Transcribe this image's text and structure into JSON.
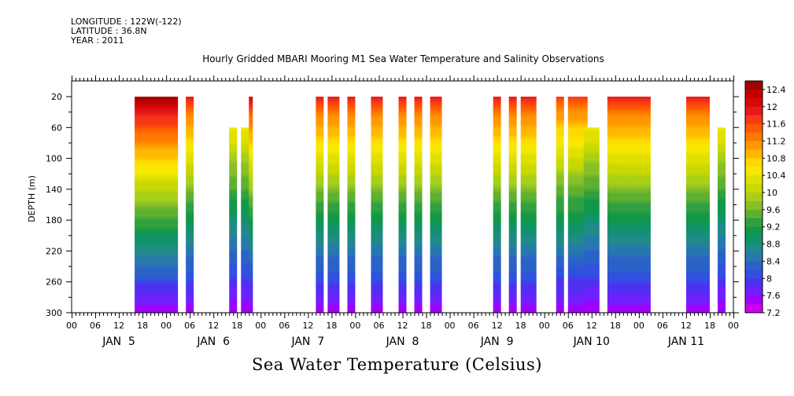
{
  "meta": {
    "longitude": "LONGITUDE : 122W(-122)",
    "latitude": "LATITUDE : 36.8N",
    "year": "YEAR : 2011"
  },
  "chart_data": {
    "type": "heatmap",
    "title": "Hourly Gridded MBARI Mooring M1 Sea Water Temperature and Salinity Observations",
    "xlabel": "",
    "ylabel": "DEPTH (m)",
    "colorbar_label": "Sea Water Temperature (Celsius)",
    "x_hour_labels": [
      "00",
      "06",
      "12",
      "18",
      "00",
      "06",
      "12",
      "18",
      "00",
      "06",
      "12",
      "18",
      "00",
      "06",
      "12",
      "18",
      "00",
      "06",
      "12",
      "18",
      "00",
      "06",
      "12",
      "18",
      "00",
      "06",
      "12",
      "18",
      "00"
    ],
    "x_day_labels": [
      "JAN  5",
      "JAN  6",
      "JAN  7",
      "JAN  8",
      "JAN  9",
      "JAN 10",
      "JAN 11"
    ],
    "y_ticks": [
      20,
      60,
      100,
      140,
      180,
      220,
      260,
      300
    ],
    "ylim": [
      300,
      20
    ],
    "xlim_hours": [
      0,
      168
    ],
    "colorbar_levels": [
      7.2,
      7.4,
      7.6,
      7.8,
      8,
      8.2,
      8.4,
      8.6,
      8.8,
      9,
      9.2,
      9.4,
      9.6,
      9.8,
      10,
      10.2,
      10.4,
      10.6,
      10.8,
      11,
      11.2,
      11.4,
      11.6,
      11.8,
      12,
      12.2,
      12.4,
      12.6
    ],
    "colorbar_labels": [
      "12.4",
      "12",
      "11.6",
      "11.2",
      "10.8",
      "10.4",
      "10",
      "9.6",
      "9.2",
      "8.8",
      "8.4",
      "8",
      "7.6",
      "7.2"
    ],
    "colors": [
      "#cc00ee",
      "#a000ff",
      "#7020ff",
      "#5030f0",
      "#3050e0",
      "#2a62c8",
      "#2878b0",
      "#208a88",
      "#10936a",
      "#109848",
      "#30a040",
      "#60b030",
      "#88c028",
      "#a8d018",
      "#c8d800",
      "#e0e000",
      "#f8e800",
      "#ffd800",
      "#ffb800",
      "#ff9800",
      "#ff7800",
      "#ff5800",
      "#f83818",
      "#e81818",
      "#d80808",
      "#c00000",
      "#a00000"
    ],
    "segments": [
      {
        "start": 16,
        "end": 26,
        "top": 20,
        "peak": 12.5
      },
      {
        "start": 29,
        "end": 30,
        "top": 20,
        "peak": 11.8
      },
      {
        "start": 40,
        "end": 41,
        "top": 60,
        "peak": 11.2
      },
      {
        "start": 43,
        "end": 45,
        "top": 60,
        "peak": 11.2
      },
      {
        "start": 45,
        "end": 45,
        "top": 20,
        "peak": 12.0
      },
      {
        "start": 62,
        "end": 63,
        "top": 20,
        "peak": 11.8
      },
      {
        "start": 65,
        "end": 67,
        "top": 20,
        "peak": 11.8
      },
      {
        "start": 70,
        "end": 71,
        "top": 20,
        "peak": 11.8
      },
      {
        "start": 76,
        "end": 78,
        "top": 20,
        "peak": 11.8
      },
      {
        "start": 83,
        "end": 84,
        "top": 20,
        "peak": 11.8
      },
      {
        "start": 87,
        "end": 88,
        "top": 20,
        "peak": 11.8
      },
      {
        "start": 91,
        "end": 93,
        "top": 20,
        "peak": 11.8
      },
      {
        "start": 107,
        "end": 108,
        "top": 20,
        "peak": 11.8
      },
      {
        "start": 111,
        "end": 112,
        "top": 20,
        "peak": 11.8
      },
      {
        "start": 114,
        "end": 117,
        "top": 20,
        "peak": 11.8
      },
      {
        "start": 123,
        "end": 124,
        "top": 20,
        "peak": 11.6
      },
      {
        "start": 126,
        "end": 130,
        "top": 20,
        "peak": 11.6
      },
      {
        "start": 130,
        "end": 133,
        "top": 60,
        "peak": 11.2
      },
      {
        "start": 136,
        "end": 146,
        "top": 20,
        "peak": 11.8
      },
      {
        "start": 156,
        "end": 161,
        "top": 20,
        "peak": 11.8
      },
      {
        "start": 164,
        "end": 165,
        "top": 60,
        "peak": 11.2
      }
    ]
  }
}
